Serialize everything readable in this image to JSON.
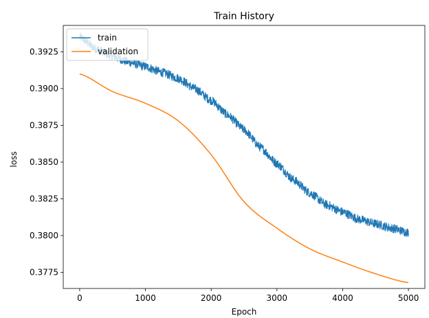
{
  "chart_data": {
    "type": "line",
    "title": "Train History",
    "xlabel": "Epoch",
    "ylabel": "loss",
    "xlim": [
      -250,
      5250
    ],
    "ylim": [
      0.3764,
      0.3943
    ],
    "xticks": [
      0,
      1000,
      2000,
      3000,
      4000,
      5000
    ],
    "xtick_labels": [
      "0",
      "1000",
      "2000",
      "3000",
      "4000",
      "5000"
    ],
    "yticks": [
      0.3775,
      0.38,
      0.3825,
      0.385,
      0.3875,
      0.39,
      0.3925
    ],
    "ytick_labels": [
      "0.3775",
      "0.3800",
      "0.3825",
      "0.3850",
      "0.3875",
      "0.3900",
      "0.3925"
    ],
    "grid": false,
    "legend": {
      "placement": "top-left"
    },
    "series": [
      {
        "name": "train",
        "color": "#1f77b4",
        "noise_amplitude": 0.0003,
        "x": [
          0,
          250,
          500,
          750,
          1000,
          1250,
          1500,
          1750,
          2000,
          2250,
          2500,
          2750,
          3000,
          3250,
          3500,
          3750,
          4000,
          4250,
          4500,
          4750,
          5000
        ],
        "y": [
          0.3935,
          0.3927,
          0.3922,
          0.3918,
          0.3915,
          0.3911,
          0.3907,
          0.39,
          0.3892,
          0.3882,
          0.3872,
          0.386,
          0.3849,
          0.3838,
          0.3829,
          0.3821,
          0.3816,
          0.3811,
          0.3808,
          0.3805,
          0.3802
        ]
      },
      {
        "name": "validation",
        "color": "#ff7f0e",
        "x": [
          0,
          250,
          500,
          750,
          1000,
          1250,
          1500,
          1750,
          2000,
          2250,
          2500,
          2750,
          3000,
          3250,
          3500,
          3750,
          4000,
          4250,
          4500,
          4750,
          5000
        ],
        "y": [
          0.391,
          0.3903,
          0.3898,
          0.3894,
          0.389,
          0.3885,
          0.3878,
          0.3868,
          0.3855,
          0.3838,
          0.3818,
          0.3798,
          0.3812,
          0.38,
          0.3791,
          0.3785,
          0.378,
          0.3777,
          0.3774,
          0.3771,
          0.3768
        ]
      }
    ]
  }
}
